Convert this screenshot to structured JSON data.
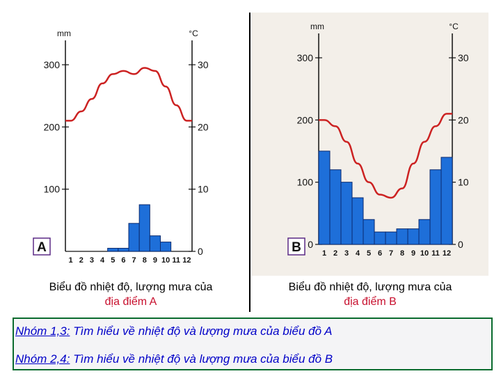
{
  "chart_data": [
    {
      "id": "A",
      "type": "bar+line",
      "panel_letter": "A",
      "left_unit": "mm",
      "right_unit": "°C",
      "left_ticks": [
        "300",
        "200",
        "100"
      ],
      "right_ticks": [
        "30",
        "20",
        "10",
        "0"
      ],
      "x_tick_labels": [
        "1",
        "2",
        "3",
        "4",
        "5",
        "6",
        "7",
        "8",
        "9",
        "10",
        "11",
        "12"
      ],
      "rain_ylim": [
        0,
        300
      ],
      "temp_ylim": [
        0,
        30
      ],
      "months": [
        1,
        2,
        3,
        4,
        5,
        6,
        7,
        8,
        9,
        10,
        11,
        12
      ],
      "rainfall_mm": [
        0,
        0,
        0,
        0,
        5,
        5,
        45,
        75,
        25,
        15,
        0,
        0
      ],
      "temperature_c": [
        21,
        22.5,
        24.5,
        27,
        28.5,
        29,
        28.5,
        29.5,
        29,
        26.5,
        23.5,
        21
      ],
      "bar_color": "#1e6fd9",
      "line_color": "#cc2222"
    },
    {
      "id": "B",
      "type": "bar+line",
      "panel_letter": "B",
      "left_unit": "mm",
      "right_unit": "°C",
      "left_ticks": [
        "300",
        "200",
        "100",
        "0"
      ],
      "right_ticks": [
        "30",
        "20",
        "10",
        "0"
      ],
      "x_tick_labels": [
        "1",
        "2",
        "3",
        "4",
        "5",
        "6",
        "7",
        "8",
        "9",
        "10",
        "11",
        "12"
      ],
      "rain_ylim": [
        0,
        300
      ],
      "temp_ylim": [
        0,
        30
      ],
      "months": [
        1,
        2,
        3,
        4,
        5,
        6,
        7,
        8,
        9,
        10,
        11,
        12
      ],
      "rainfall_mm": [
        150,
        120,
        100,
        75,
        40,
        20,
        20,
        25,
        25,
        40,
        120,
        140
      ],
      "temperature_c": [
        20,
        19,
        16.5,
        13,
        10,
        8,
        7.5,
        9,
        13,
        16.5,
        19,
        21
      ],
      "bar_color": "#1e6fd9",
      "line_color": "#cc2222"
    }
  ],
  "captions": {
    "a": {
      "line1": "Biểu đồ nhiệt độ, lượng mưa của",
      "line2": "địa điểm A"
    },
    "b": {
      "line1": "Biểu đồ nhiệt độ, lượng mưa của",
      "line2": "địa điểm B"
    }
  },
  "tasks": [
    {
      "group": "Nhóm 1,3:",
      "text": " Tìm hiểu về nhiệt độ và lượng mưa của biểu đồ A"
    },
    {
      "group": "Nhóm 2,4:",
      "text": " Tìm hiểu về nhiệt độ và lượng mưa của biểu đồ  B"
    }
  ]
}
